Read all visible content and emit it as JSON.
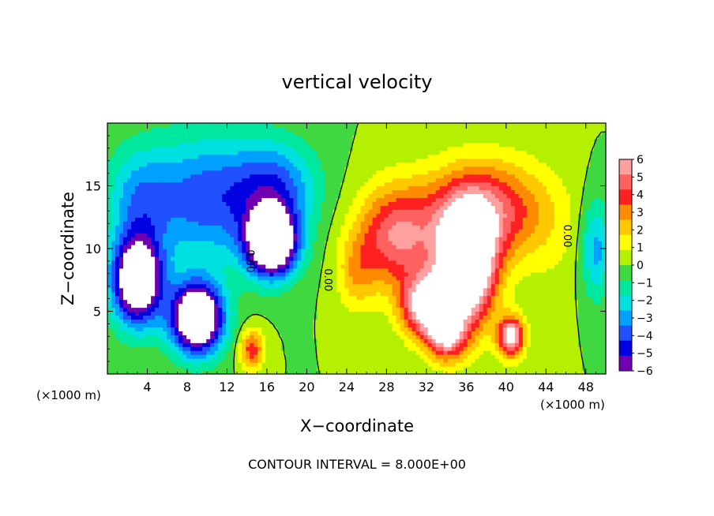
{
  "chart_data": {
    "type": "heatmap",
    "title": "vertical velocity",
    "xlabel": "X−coordinate",
    "ylabel": "Z−coordinate",
    "x_unit_label": "(×1000 m)",
    "x_unit_label_right": "(×1000 m)",
    "footer": "CONTOUR INTERVAL = 8.000E+00",
    "xlim": [
      0,
      50
    ],
    "ylim": [
      0,
      20
    ],
    "x_ticks": [
      4,
      8,
      12,
      16,
      20,
      24,
      28,
      32,
      36,
      40,
      44,
      48
    ],
    "y_ticks": [
      5,
      10,
      15
    ],
    "colorbar": {
      "min": -6,
      "max": 6,
      "tick_labels": [
        "6",
        "5",
        "4",
        "3",
        "2",
        "1",
        "0",
        "−1",
        "−2",
        "−3",
        "−4",
        "−5",
        "−6"
      ],
      "tick_values": [
        6,
        5,
        4,
        3,
        2,
        1,
        0,
        -1,
        -2,
        -3,
        -4,
        -5,
        -6
      ],
      "colors": [
        "#ffa0a0",
        "#ff6060",
        "#ff2020",
        "#ff8c00",
        "#ffc800",
        "#ffff00",
        "#b4f000",
        "#40d840",
        "#00e8a0",
        "#00e0e0",
        "#00a0ff",
        "#2050ff",
        "#0000e0",
        "#7000b0"
      ]
    },
    "contour_labels": [
      "0.00",
      "0.00",
      "0.00"
    ],
    "cells": [
      {
        "cx": 3.0,
        "cy": 7.5,
        "sx": 2.5,
        "sy": 3.5,
        "a": -9
      },
      {
        "cx": 9.0,
        "cy": 4.5,
        "sx": 2.6,
        "sy": 2.8,
        "a": -10
      },
      {
        "cx": 16.5,
        "cy": 10.5,
        "sx": 2.5,
        "sy": 2.6,
        "a": -10
      },
      {
        "cx": 10.0,
        "cy": 14.0,
        "sx": 7.0,
        "sy": 5.0,
        "a": -4
      },
      {
        "cx": 3.0,
        "cy": 14.0,
        "sx": 3.0,
        "sy": 4.0,
        "a": -2
      },
      {
        "cx": 17.0,
        "cy": 15.0,
        "sx": 4.0,
        "sy": 3.5,
        "a": -3
      },
      {
        "cx": 49.0,
        "cy": 10.0,
        "sx": 1.5,
        "sy": 4.0,
        "a": -3
      },
      {
        "cx": 36.0,
        "cy": 8.5,
        "sx": 2.8,
        "sy": 4.5,
        "a": 10
      },
      {
        "cx": 32.0,
        "cy": 5.5,
        "sx": 2.5,
        "sy": 2.5,
        "a": 7
      },
      {
        "cx": 38.0,
        "cy": 13.0,
        "sx": 6.0,
        "sy": 4.0,
        "a": 5
      },
      {
        "cx": 29.0,
        "cy": 11.0,
        "sx": 4.0,
        "sy": 4.0,
        "a": 5
      },
      {
        "cx": 40.5,
        "cy": 3.0,
        "sx": 1.3,
        "sy": 1.6,
        "a": 7
      },
      {
        "cx": 34.0,
        "cy": 3.0,
        "sx": 2.0,
        "sy": 2.0,
        "a": 5
      },
      {
        "cx": 14.5,
        "cy": 2.0,
        "sx": 1.2,
        "sy": 1.6,
        "a": 4
      },
      {
        "cx": 25.0,
        "cy": 8.0,
        "sx": 2.0,
        "sy": 3.0,
        "a": 2
      },
      {
        "cx": 45.0,
        "cy": 10.0,
        "sx": 3.0,
        "sy": 5.0,
        "a": 0.5
      }
    ]
  }
}
